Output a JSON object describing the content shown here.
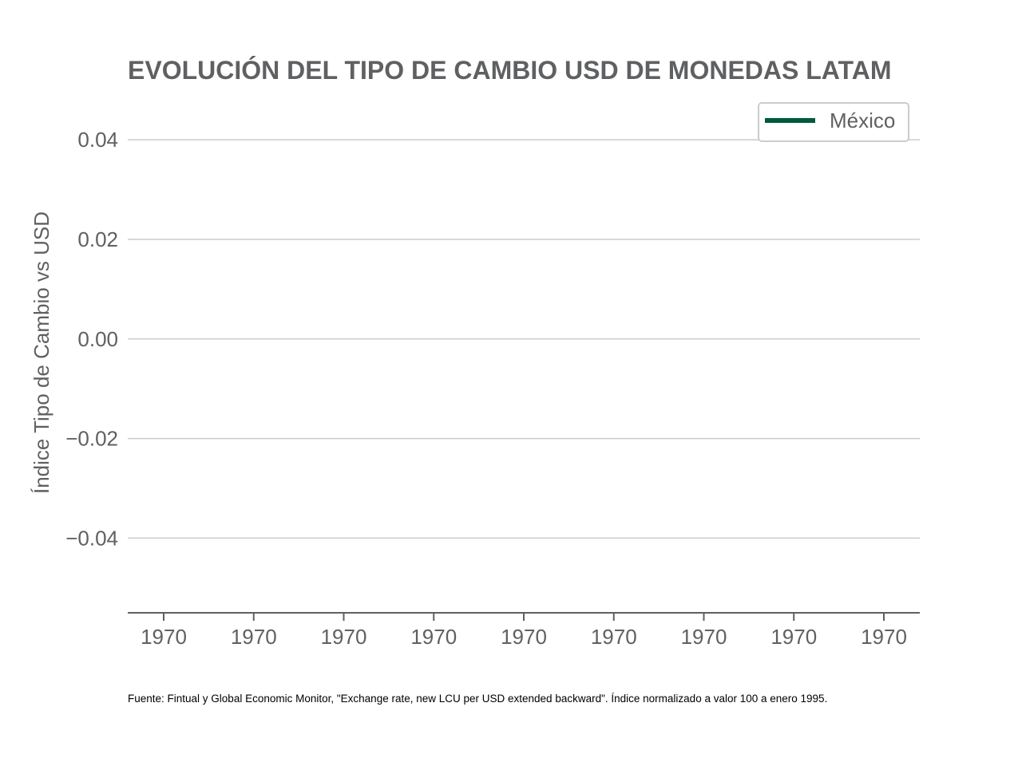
{
  "chart_data": {
    "type": "line",
    "title": "EVOLUCIÓN DEL TIPO DE CAMBIO USD DE MONEDAS LATAM",
    "xlabel": "",
    "ylabel": "Índice Tipo de Cambio vs USD",
    "x_tick_labels": [
      "1970",
      "1970",
      "1970",
      "1970",
      "1970",
      "1970",
      "1970",
      "1970",
      "1970"
    ],
    "y_ticks": [
      0.04,
      0.02,
      0.0,
      -0.02,
      -0.04
    ],
    "y_tick_labels": [
      "0.04",
      "0.02",
      "0.00",
      "−0.02",
      "−0.04"
    ],
    "ylim": [
      -0.055,
      0.045
    ],
    "grid": "horizontal",
    "legend_position": "top-right",
    "series": [
      {
        "name": "México",
        "color": "#005a3c",
        "values": []
      }
    ],
    "source_note": "Fuente: Fintual y Global Economic Monitor, \"Exchange rate, new LCU per USD extended backward\". Índice normalizado a valor 100 a enero 1995."
  },
  "colors": {
    "text": "#5f6062",
    "grid": "#cccccc",
    "axis": "#5f6062",
    "legend_border": "#cccccc"
  }
}
